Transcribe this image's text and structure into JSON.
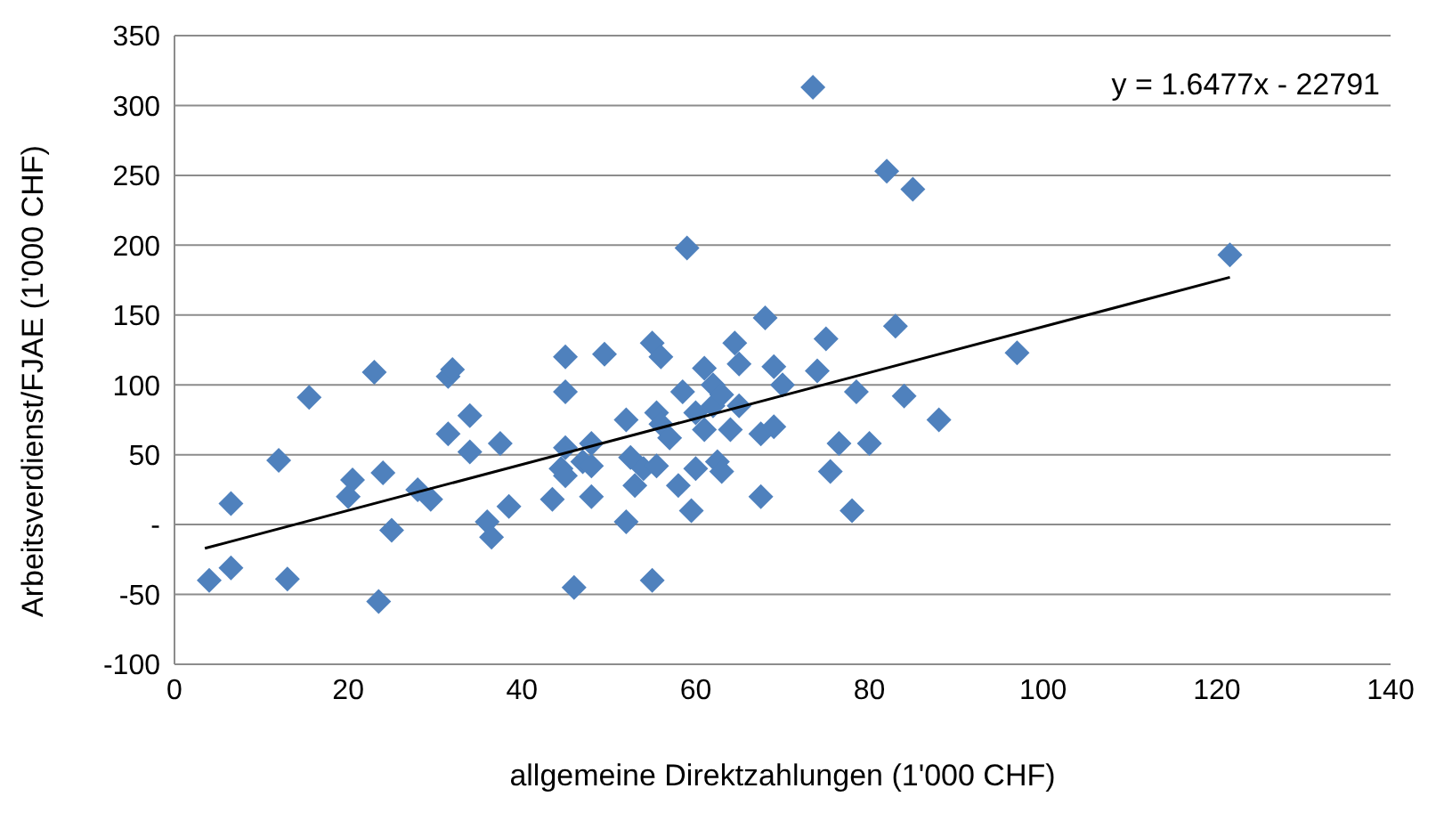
{
  "chart_data": {
    "type": "scatter",
    "xlabel": "allgemeine Direktzahlungen (1'000 CHF)",
    "ylabel": "Arbeitsverdienst/FJAE (1'000 CHF)",
    "annotations": [
      "y = 1.6477x - 22791"
    ],
    "xlim": [
      0,
      140
    ],
    "xticks": [
      0,
      20,
      40,
      60,
      80,
      100,
      120,
      140
    ],
    "ylim": [
      -100,
      350
    ],
    "yticks": [
      -100,
      -50,
      {
        "value": 0,
        "label": "-"
      },
      50,
      100,
      150,
      200,
      250,
      300,
      350
    ],
    "grid": "y",
    "legend": false,
    "series": [
      {
        "color": "#4f81bd",
        "marker": "diamond",
        "x": [
          4,
          6.5,
          6.5,
          12,
          13,
          15.5,
          20,
          20.5,
          23,
          23.5,
          24,
          25,
          28,
          29.5,
          31.5,
          31.5,
          32,
          34,
          34,
          36,
          36.5,
          37.5,
          38.5,
          43.5,
          44.5,
          45,
          45,
          45,
          45,
          46,
          47,
          48,
          48,
          48,
          49.5,
          52,
          52,
          52.5,
          53,
          54,
          55,
          55,
          55.5,
          55.5,
          56,
          56,
          57,
          58,
          58.5,
          59,
          59.5,
          60,
          60,
          61,
          61,
          62,
          62,
          62.5,
          63,
          63,
          64,
          64.5,
          65,
          65,
          67.5,
          67.5,
          68,
          69,
          69,
          70,
          73.5,
          74,
          75,
          75.5,
          76.5,
          78,
          78.5,
          80,
          82,
          83,
          84,
          85,
          88,
          97,
          121.5
        ],
        "values": [
          -40,
          15,
          -31,
          46,
          -39,
          91,
          20,
          32,
          109,
          -55,
          37,
          -4,
          25,
          18,
          65,
          106,
          111,
          52,
          78,
          2,
          -9,
          58,
          13,
          18,
          40,
          55,
          35,
          95,
          120,
          -45,
          45,
          58,
          20,
          42,
          122,
          2,
          75,
          48,
          28,
          40,
          130,
          -40,
          80,
          42,
          72,
          120,
          62,
          28,
          95,
          198,
          10,
          40,
          80,
          112,
          68,
          85,
          100,
          45,
          38,
          93,
          68,
          130,
          115,
          85,
          20,
          65,
          148,
          113,
          70,
          100,
          313,
          110,
          133,
          38,
          58,
          10,
          95,
          58,
          253,
          142,
          92,
          240,
          75,
          123,
          193
        ]
      },
      {
        "type": "line",
        "color": "#000000",
        "marker": "none",
        "x": [
          3.5,
          121.5
        ],
        "values": [
          -17,
          177
        ]
      }
    ]
  }
}
